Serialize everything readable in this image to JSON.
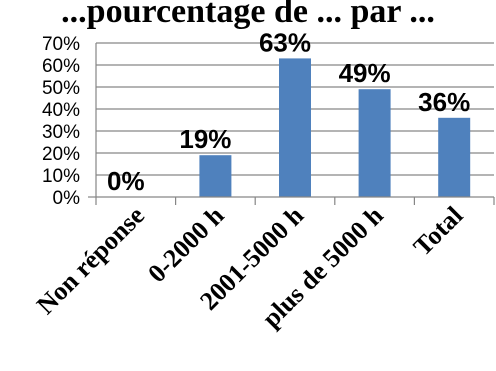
{
  "chart_data": {
    "type": "bar",
    "title": "...pourcentage de ... par ...",
    "categories": [
      "Non réponse",
      "0-2000 h",
      "2001-5000 h",
      "plus de 5000 h",
      "Total"
    ],
    "values": [
      0,
      19,
      63,
      49,
      36
    ],
    "data_labels": [
      "0%",
      "19%",
      "63%",
      "49%",
      "36%"
    ],
    "ytick_labels": [
      "0%",
      "10%",
      "20%",
      "30%",
      "40%",
      "50%",
      "60%",
      "70%"
    ],
    "ylim": [
      0,
      70
    ],
    "ytick_step": 10,
    "grid": true,
    "bar_color": "#4F81BD",
    "grid_color": "#868686"
  }
}
